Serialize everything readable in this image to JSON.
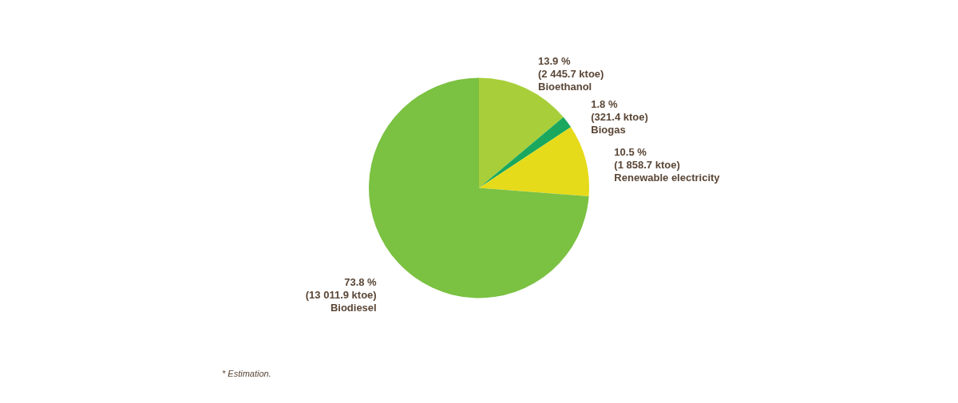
{
  "chart_data": {
    "type": "pie",
    "categories": [
      "Bioethanol",
      "Biogas",
      "Renewable electricity",
      "Biodiesel"
    ],
    "values": [
      13.9,
      1.8,
      10.5,
      73.8
    ],
    "colors": [
      "#a8cf3a",
      "#1aa85f",
      "#e6db1a",
      "#7bc142"
    ],
    "value_labels": [
      "13.9 %\n(2 445.7 ktoe)",
      "1.8 %\n(321.4 ktoe)",
      "10.5 %\n(1 858.7 ktoe)",
      "73.8 %\n(13 011.9 ktoe)"
    ],
    "annotations": [
      "* Estimation."
    ]
  }
}
